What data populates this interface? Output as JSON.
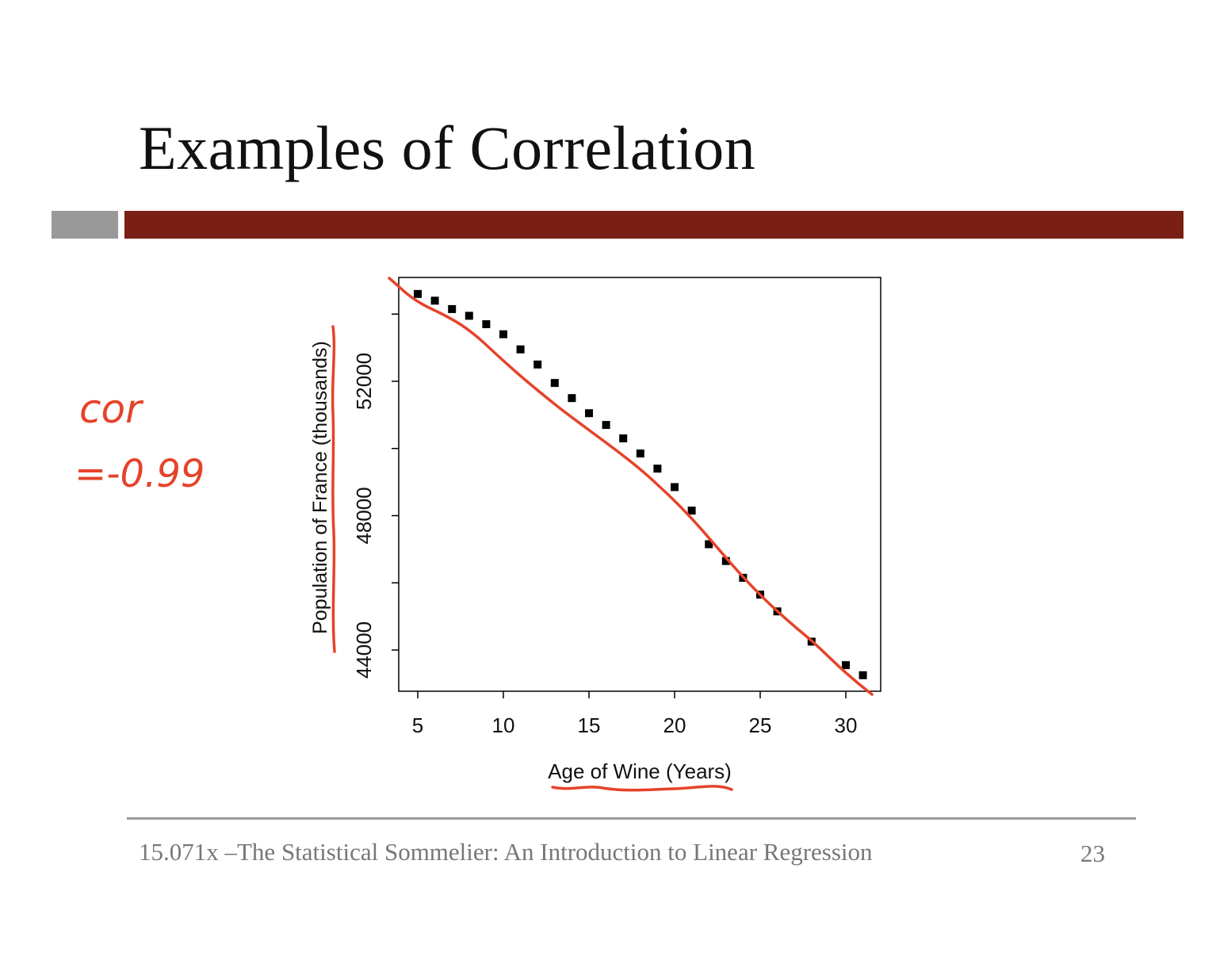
{
  "slide": {
    "title": "Examples of Correlation",
    "footer_text": "15.071x –The Statistical Sommelier: An Introduction to Linear Regression",
    "page_number": "23",
    "accent_gray": "#999999",
    "accent_red": "#7a1f14"
  },
  "annotation": {
    "line1": "cor",
    "line2": "=-0.99",
    "ink_color": "#e5432a"
  },
  "chart_data": {
    "type": "scatter",
    "title": "",
    "xlabel": "Age of Wine (Years)",
    "ylabel": "Population of France (thousands)",
    "xlim": [
      4,
      32
    ],
    "ylim": [
      43400,
      54000
    ],
    "xticks": [
      5,
      10,
      15,
      20,
      25,
      30
    ],
    "yticks": [
      44000,
      46000,
      48000,
      50000,
      52000,
      54000
    ],
    "ytick_labels": [
      "44000",
      "",
      "48000",
      "",
      "52000",
      ""
    ],
    "grid": false,
    "series": [
      {
        "marker": "square",
        "color": "#000000",
        "x": [
          5,
          6,
          7,
          8,
          9,
          10,
          11,
          12,
          13,
          14,
          15,
          16,
          17,
          18,
          19,
          20,
          21,
          22,
          23,
          24,
          25,
          26,
          28,
          30,
          31
        ],
        "y": [
          54600,
          54400,
          54150,
          53950,
          53700,
          53400,
          52950,
          52500,
          51950,
          51500,
          51050,
          50700,
          50300,
          49850,
          49400,
          48850,
          48150,
          47150,
          46650,
          46150,
          45650,
          45150,
          44250,
          43550,
          43250
        ]
      }
    ]
  }
}
